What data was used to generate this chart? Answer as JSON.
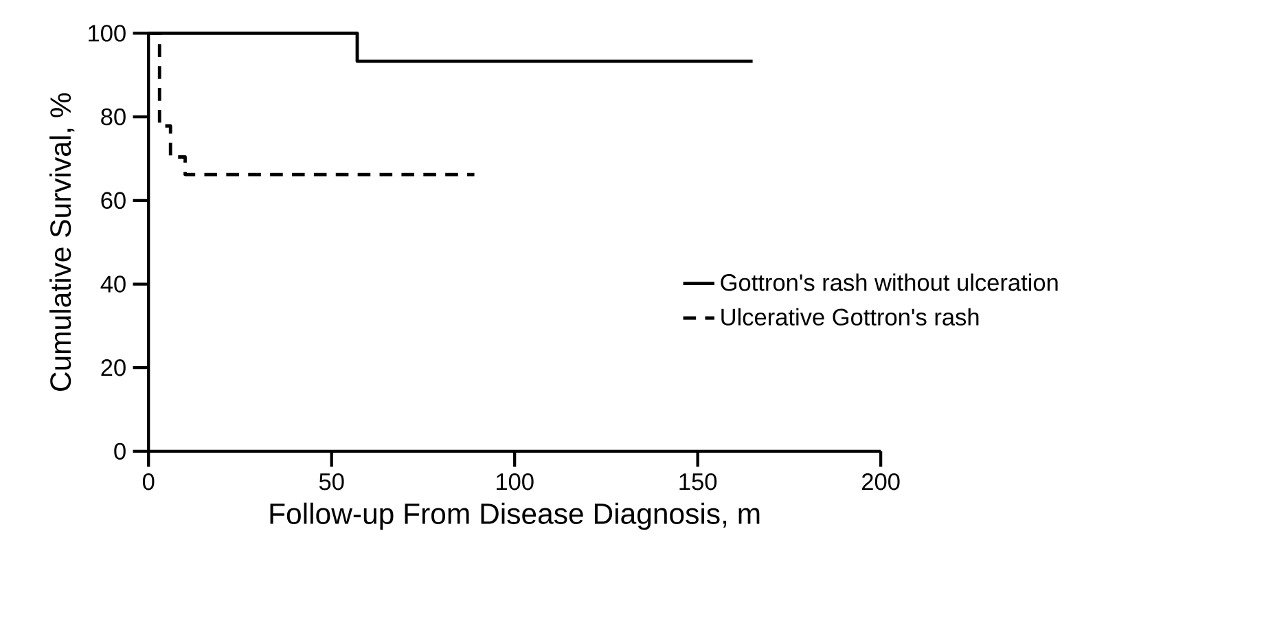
{
  "chart_data": {
    "type": "step",
    "xlabel": "Follow-up From Disease Diagnosis, m",
    "ylabel": "Cumulative Survival, %",
    "series": [
      {
        "name": "Gottron's rash without ulceration",
        "color": "#000000",
        "line_style": "solid",
        "x": [
          0,
          57,
          165
        ],
        "values": [
          100,
          93.3,
          93.3
        ]
      },
      {
        "name": "Ulcerative Gottron's rash",
        "color": "#000000",
        "line_style": "dashed",
        "x": [
          0,
          3,
          6,
          10,
          89
        ],
        "values": [
          100,
          77.8,
          70.4,
          66.2,
          66.2
        ]
      }
    ],
    "xlim": [
      0,
      200
    ],
    "ylim": [
      0,
      100
    ],
    "xticks": [
      0,
      50,
      100,
      150,
      200
    ],
    "yticks": [
      0,
      20,
      40,
      60,
      80,
      100
    ],
    "grid": false,
    "legend": "right",
    "marker": "none"
  }
}
